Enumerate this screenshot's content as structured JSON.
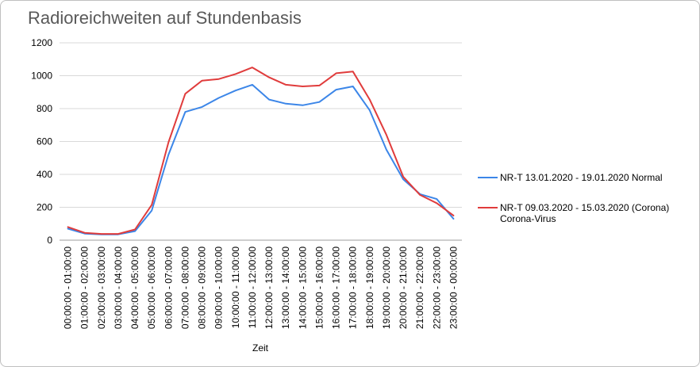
{
  "chart_data": {
    "type": "line",
    "title": "Radioreichweiten auf Stundenbasis",
    "xlabel": "Zeit",
    "ylabel": "",
    "ylim": [
      0,
      1200
    ],
    "yticks": [
      "0",
      "200",
      "400",
      "600",
      "800",
      "1000",
      "1200"
    ],
    "grid": true,
    "legend_position": "right",
    "categories": [
      "00:00:00 - 01:00:00",
      "01:00:00 - 02:00:00",
      "02:00:00 - 03:00:00",
      "03:00:00 - 04:00:00",
      "04:00:00 - 05:00:00",
      "05:00:00 - 06:00:00",
      "06:00:00 - 07:00:00",
      "07:00:00 - 08:00:00",
      "08:00:00 - 09:00:00",
      "09:00:00 - 10:00:00",
      "10:00:00 - 11:00:00",
      "11:00:00 - 12:00:00",
      "12:00:00 - 13:00:00",
      "13:00:00 - 14:00:00",
      "14:00:00 - 15:00:00",
      "15:00:00 - 16:00:00",
      "16:00:00 - 17:00:00",
      "17:00:00 - 18:00:00",
      "18:00:00 - 19:00:00",
      "19:00:00 - 20:00:00",
      "20:00:00 - 21:00:00",
      "21:00:00 - 22:00:00",
      "22:00:00 - 23:00:00",
      "23:00:00 - 00:00:00"
    ],
    "series": [
      {
        "name": "NR-T 13.01.2020 - 19.01.2020 Normal",
        "name_lines": [
          "NR-T 13.01.2020 - 19.01.2020 Normal"
        ],
        "color": "#3c86e8",
        "values": [
          70,
          40,
          35,
          35,
          55,
          180,
          520,
          780,
          810,
          865,
          910,
          945,
          855,
          830,
          820,
          840,
          915,
          935,
          790,
          550,
          370,
          280,
          250,
          130
        ]
      },
      {
        "name": "NR-T 09.03.2020 - 15.03.2020 (Corona) Corona-Virus",
        "name_lines": [
          "NR-T 09.03.2020 - 15.03.2020 (Corona)",
          "Corona-Virus"
        ],
        "color": "#e03c3c",
        "values": [
          80,
          45,
          38,
          38,
          65,
          215,
          595,
          890,
          970,
          980,
          1010,
          1050,
          990,
          945,
          935,
          940,
          1015,
          1025,
          855,
          640,
          385,
          275,
          225,
          150
        ]
      }
    ]
  }
}
